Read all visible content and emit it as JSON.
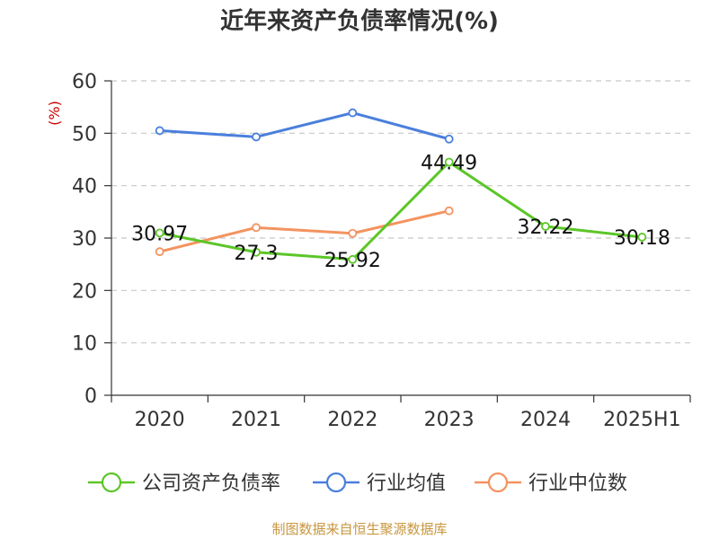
{
  "chart_data": {
    "type": "line",
    "title": "近年来资产负债率情况(%)",
    "ylabel": "(%)",
    "xlabel": "",
    "categories": [
      "2020",
      "2021",
      "2022",
      "2023",
      "2024",
      "2025H1"
    ],
    "ylim": [
      0,
      60
    ],
    "yticks": [
      0,
      10,
      20,
      30,
      40,
      50,
      60
    ],
    "grid": true,
    "legend_position": "bottom",
    "series": [
      {
        "name": "公司资产负债率",
        "color": "#5cc628",
        "values": [
          30.97,
          27.3,
          25.92,
          44.49,
          32.22,
          30.18
        ],
        "labels": [
          "30.97",
          "27.3",
          "25.92",
          "44.49",
          "32.22",
          "30.18"
        ]
      },
      {
        "name": "行业均值",
        "color": "#4a7fdc",
        "values": [
          50.5,
          49.3,
          53.9,
          48.9,
          null,
          null
        ]
      },
      {
        "name": "行业中位数",
        "color": "#f4935f",
        "values": [
          27.4,
          32.0,
          30.9,
          35.2,
          null,
          null
        ]
      }
    ]
  },
  "source": "制图数据来自恒生聚源数据库"
}
